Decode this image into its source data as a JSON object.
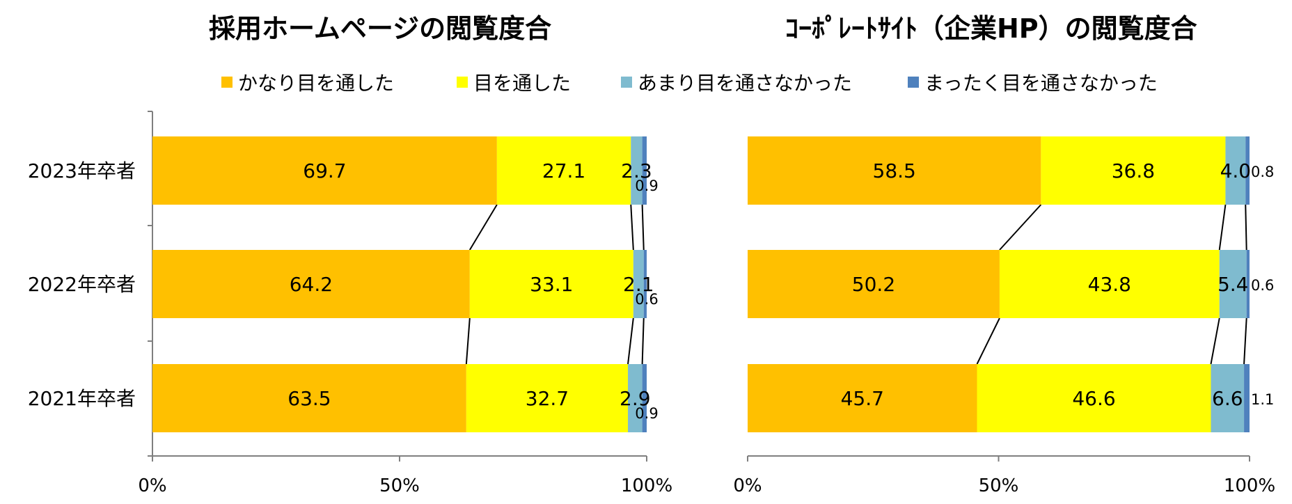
{
  "colors": {
    "very_much": "#FFC000",
    "did_read": "#FFFF00",
    "not_much": "#7FBBCF",
    "not_at_all": "#4F81BD"
  },
  "legend": [
    {
      "label": "かなり目を通した",
      "color": "#FFC000"
    },
    {
      "label": "目を通した",
      "color": "#FFFF00"
    },
    {
      "label": "あまり目を通さなかった",
      "color": "#7FBBCF"
    },
    {
      "label": "まったく目を通さなかった",
      "color": "#4F81BD"
    }
  ],
  "chart_data": [
    {
      "type": "bar",
      "orientation": "horizontal",
      "stacked": "percent",
      "title": "採用ホームページの閲覧度合",
      "categories": [
        "2023年卒者",
        "2022年卒者",
        "2021年卒者"
      ],
      "series": [
        {
          "name": "かなり目を通した",
          "values": [
            69.7,
            64.2,
            63.5
          ]
        },
        {
          "name": "目を通した",
          "values": [
            27.1,
            33.1,
            32.7
          ]
        },
        {
          "name": "あまり目を通さなかった",
          "values": [
            2.3,
            2.1,
            2.9
          ]
        },
        {
          "name": "まったく目を通さなかった",
          "values": [
            0.9,
            0.6,
            0.9
          ]
        }
      ],
      "xticks": [
        "0%",
        "50%",
        "100%"
      ],
      "xlim": [
        0,
        100
      ]
    },
    {
      "type": "bar",
      "orientation": "horizontal",
      "stacked": "percent",
      "title": "ｺｰﾎﾟﾚｰﾄｻｲﾄ（企業HP）の閲覧度合",
      "categories": [
        "2023年卒者",
        "2022年卒者",
        "2021年卒者"
      ],
      "series": [
        {
          "name": "かなり目を通した",
          "values": [
            58.5,
            50.2,
            45.7
          ]
        },
        {
          "name": "目を通した",
          "values": [
            36.8,
            43.8,
            46.6
          ]
        },
        {
          "name": "あまり目を通さなかった",
          "values": [
            4.0,
            5.4,
            6.6
          ]
        },
        {
          "name": "まったく目を通さなかった",
          "values": [
            0.8,
            0.6,
            1.1
          ]
        }
      ],
      "xticks": [
        "0%",
        "50%",
        "100%"
      ],
      "xlim": [
        0,
        100
      ]
    }
  ]
}
